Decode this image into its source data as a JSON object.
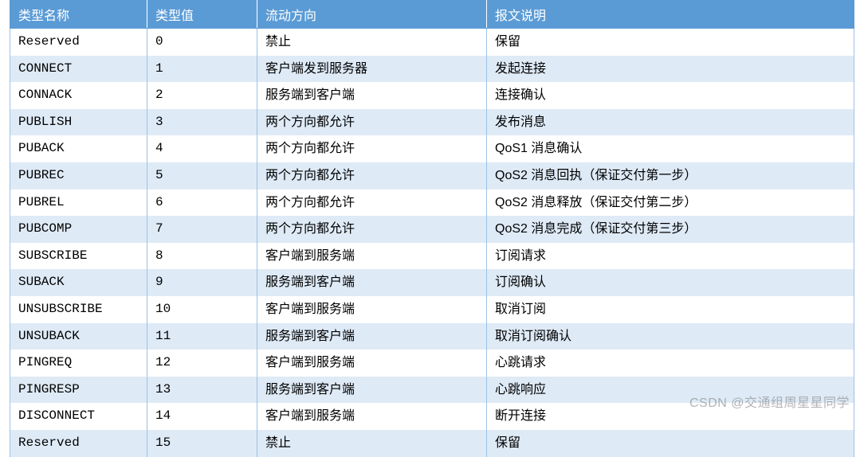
{
  "table": {
    "header_bg": "#5b9bd5",
    "header_fg": "#ffffff",
    "row_odd_bg": "#ffffff",
    "row_even_bg": "#deeaf6",
    "border_color": "#9cc2e5",
    "columns": [
      "类型名称",
      "类型值",
      "流动方向",
      "报文说明"
    ],
    "rows": [
      [
        "Reserved",
        "0",
        "禁止",
        "保留"
      ],
      [
        "CONNECT",
        "1",
        "客户端发到服务器",
        "发起连接"
      ],
      [
        "CONNACK",
        "2",
        "服务端到客户端",
        "连接确认"
      ],
      [
        "PUBLISH",
        "3",
        "两个方向都允许",
        "发布消息"
      ],
      [
        "PUBACK",
        "4",
        "两个方向都允许",
        "QoS1 消息确认"
      ],
      [
        "PUBREC",
        "5",
        "两个方向都允许",
        "QoS2 消息回执（保证交付第一步）"
      ],
      [
        "PUBREL",
        "6",
        "两个方向都允许",
        "QoS2 消息释放（保证交付第二步）"
      ],
      [
        "PUBCOMP",
        "7",
        "两个方向都允许",
        "QoS2 消息完成（保证交付第三步）"
      ],
      [
        "SUBSCRIBE",
        "8",
        "客户端到服务端",
        "订阅请求"
      ],
      [
        "SUBACK",
        "9",
        "服务端到客户端",
        "订阅确认"
      ],
      [
        "UNSUBSCRIBE",
        "10",
        "客户端到服务端",
        "取消订阅"
      ],
      [
        "UNSUBACK",
        "11",
        "服务端到客户端",
        "取消订阅确认"
      ],
      [
        "PINGREQ",
        "12",
        "客户端到服务端",
        "心跳请求"
      ],
      [
        "PINGRESP",
        "13",
        "服务端到客户端",
        "心跳响应"
      ],
      [
        "DISCONNECT",
        "14",
        "客户端到服务端",
        "断开连接"
      ],
      [
        "Reserved",
        "15",
        "禁止",
        "保留"
      ]
    ]
  },
  "watermark": "CSDN @交通组周星星同学"
}
